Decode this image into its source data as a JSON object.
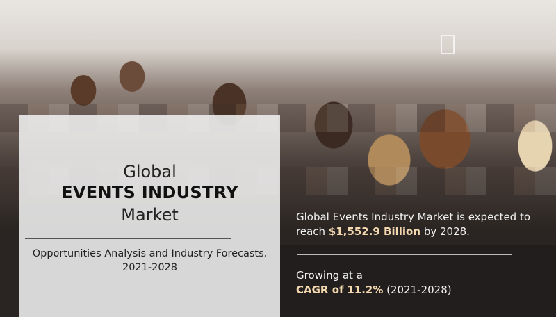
{
  "title": {
    "line1": "Global",
    "line2": "EVENTS INDUSTRY",
    "line3": "Market"
  },
  "subtitle": {
    "line1": "Opportunities Analysis and Industry Forecasts,",
    "line2": "2021-2028"
  },
  "stat1": {
    "text_before": "Global Events Industry Market is expected to",
    "reach": "reach",
    "value": "$1,552.9 Billion",
    "text_after": "by 2028."
  },
  "stat2": {
    "line1": "Growing at a",
    "cagr_label": "CAGR of",
    "cagr_value": "11.2%",
    "period": "(2021-2028)"
  },
  "colors": {
    "highlight": "#f4d8b0",
    "panel_dark": "#211e1d",
    "panel_light": "#f0f0f0"
  }
}
